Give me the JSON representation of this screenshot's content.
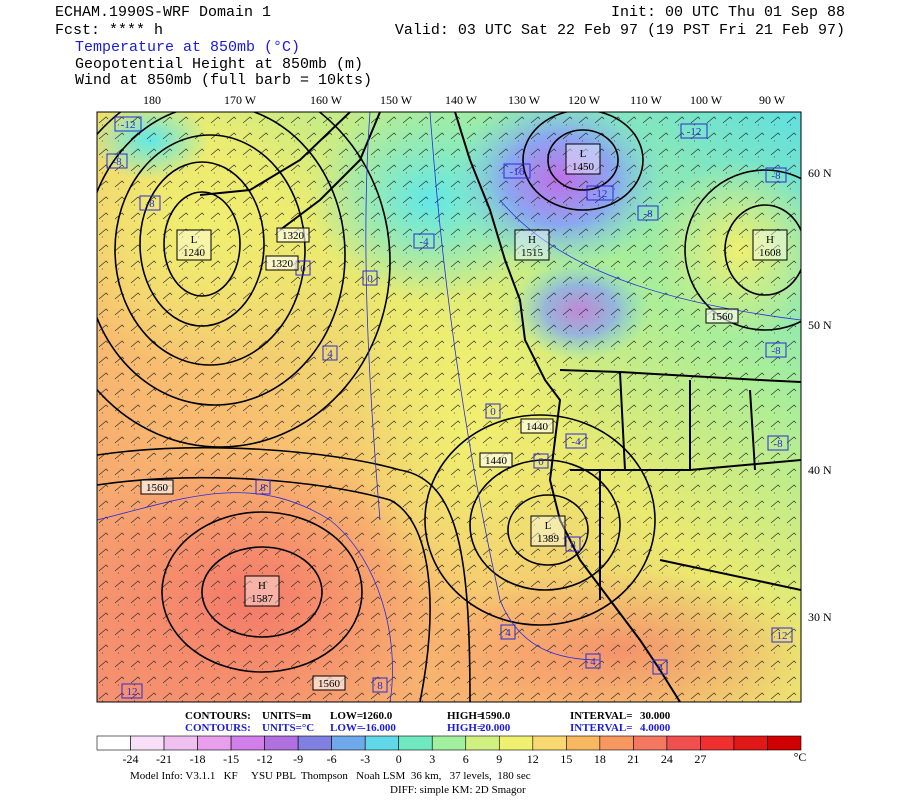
{
  "header": {
    "title": "ECHAM.1990S-WRF Domain 1",
    "fcst": "Fcst: **** h",
    "init": "Init: 00 UTC Thu 01 Sep 88",
    "valid": "Valid: 03 UTC Sat 22 Feb 97 (19 PST Fri 21 Feb 97)",
    "fields": [
      "Temperature at 850mb (°C)",
      "Geopotential Height at 850mb (m)",
      "Wind at 850mb (full barb = 10kts)"
    ]
  },
  "map": {
    "longitude_labels": [
      "180",
      "170 W",
      "160 W",
      "150 W",
      "140 W",
      "130 W",
      "120 W",
      "110 W",
      "100 W",
      "90 W"
    ],
    "latitude_labels": [
      "60 N",
      "50 N",
      "40 N",
      "30 N"
    ],
    "centers": [
      {
        "letter": "L",
        "value": "1450"
      },
      {
        "letter": "H",
        "value": "1515"
      },
      {
        "letter": "H",
        "value": "1608"
      },
      {
        "letter": "L",
        "value": "1240"
      },
      {
        "letter": "L",
        "value": "1389"
      },
      {
        "letter": "H",
        "value": "1587"
      }
    ],
    "height_labels": [
      "1320",
      "1320",
      "1560",
      "1440",
      "1440",
      "1560",
      "1560"
    ],
    "temperature_labels": [
      "-12",
      "-8",
      "-8",
      "-16",
      "-12",
      "-12",
      "-8",
      "-4",
      "0",
      "0",
      "4",
      "0",
      "-4",
      "0",
      "8",
      "8",
      "4",
      "4",
      "8",
      "8",
      "12",
      "12",
      "-8",
      "-8",
      "-8"
    ]
  },
  "contour_info": {
    "height": [
      "CONTOURS:",
      "UNITS=m",
      "LOW=",
      "1260.0",
      "HIGH=",
      "1590.0",
      "INTERVAL=",
      "30.000"
    ],
    "temperature": [
      "CONTOURS:",
      "UNITS=°C",
      "LOW=",
      "-16.000",
      "HIGH=",
      "20.000",
      "INTERVAL=",
      "4.0000"
    ]
  },
  "colorbar": {
    "ticks": [
      "-24",
      "-21",
      "-18",
      "-15",
      "-12",
      "-9",
      "-6",
      "-3",
      "0",
      "3",
      "6",
      "9",
      "12",
      "15",
      "18",
      "21",
      "24",
      "27"
    ],
    "unit": "°C"
  },
  "footer": {
    "line1": "Model Info: V3.1.1   KF     YSU PBL  Thompson   Noah LSM  36 km,   37 levels,  180 sec",
    "line2": "DIFF: simple KM: 2D Smagor"
  }
}
